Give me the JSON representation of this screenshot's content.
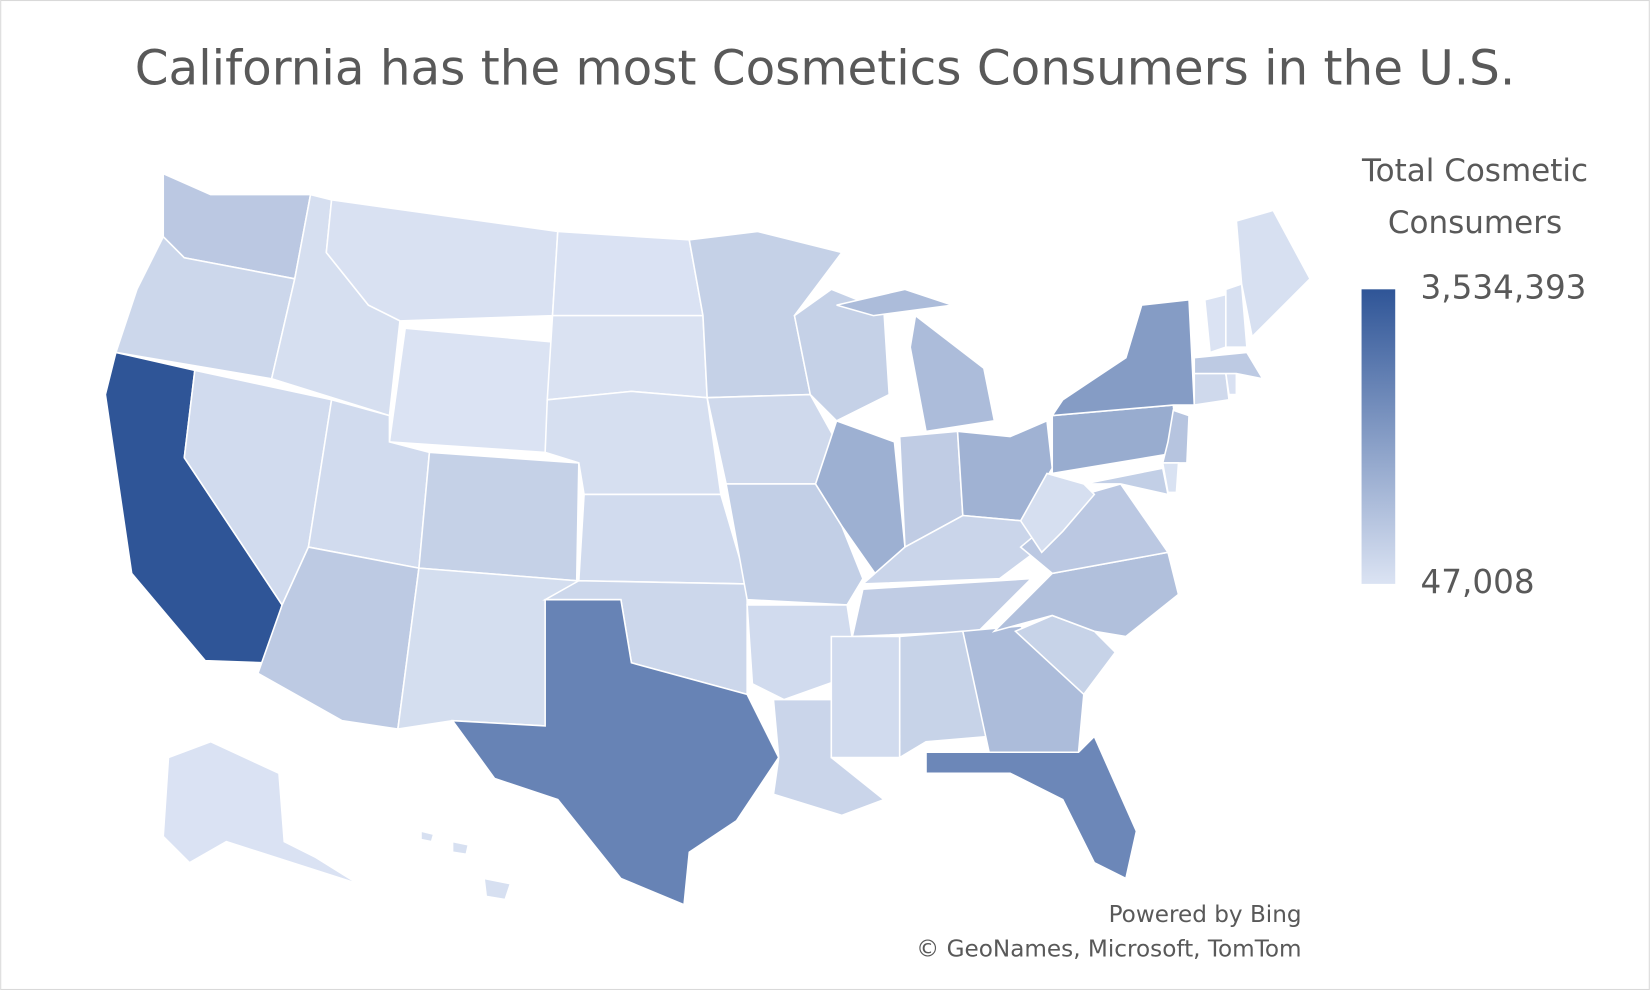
{
  "chart_data": {
    "type": "choropleth",
    "title": "California has the most Cosmetics Consumers in the U.S.",
    "legend_title": "Total Cosmetic Consumers",
    "values": [
      700000,
      350000,
      3534393,
      250000,
      150000,
      90000,
      47008,
      250000,
      500000,
      650000,
      180000,
      60000,
      70000,
      150000,
      250000,
      350000,
      2400000,
      500000,
      300000,
      550000,
      250000,
      400000,
      500000,
      1300000,
      1000000,
      600000,
      1250000,
      400000,
      600000,
      250000,
      450000,
      1000000,
      2300000,
      450000,
      900000,
      700000,
      150000,
      1400000,
      1800000,
      800000,
      550000,
      80000,
      300000,
      90000,
      650000,
      50000,
      120000,
      120000,
      60000,
      120000
    ],
    "colors": [
      "#dbe3f3",
      "#2f5597"
    ],
    "colorbar": {
      "ticks": [
        {
          "value": 3534393,
          "label": "3,534,393"
        },
        {
          "value": 47008,
          "label": "47,008"
        }
      ]
    },
    "attribution": [
      "Powered by Bing",
      "© GeoNames, Microsoft, TomTom"
    ]
  }
}
